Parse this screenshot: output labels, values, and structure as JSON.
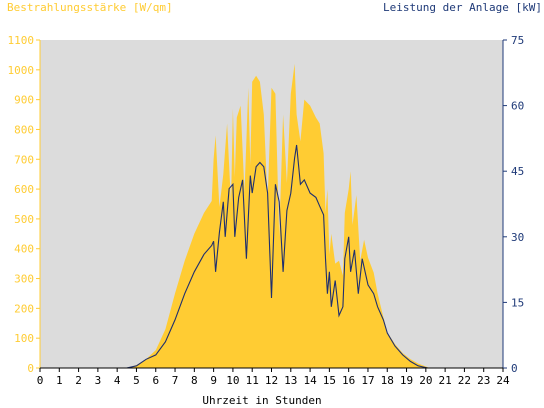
{
  "chart_data": {
    "type": "area",
    "left_axis_label": "Bestrahlungsstärke [W/qm]",
    "right_axis_label": "Leistung der Anlage [kW]",
    "xlabel": "Uhrzeit in Stunden",
    "xlim": [
      0,
      24
    ],
    "x_ticks": [
      "0",
      "1",
      "2",
      "3",
      "4",
      "5",
      "6",
      "7",
      "8",
      "9",
      "10",
      "11",
      "12",
      "13",
      "14",
      "15",
      "16",
      "17",
      "18",
      "19",
      "20",
      "21",
      "22",
      "23",
      "24"
    ],
    "y_left_lim": [
      0,
      1100
    ],
    "y_left_ticks": [
      "0",
      "100",
      "200",
      "300",
      "400",
      "500",
      "600",
      "700",
      "800",
      "900",
      "1000",
      "1100"
    ],
    "y_right_lim": [
      0,
      75
    ],
    "y_right_ticks": [
      "0",
      "15",
      "30",
      "45",
      "60",
      "75"
    ],
    "grid": false,
    "colors": {
      "irradiance": "#ffcc33",
      "power": "#1f2f6e",
      "plot_bg": "#dcdcdc",
      "left_axis": "#ffcc33",
      "right_axis": "#1f3a78",
      "x_axis": "#000000"
    },
    "series": [
      {
        "name": "Bestrahlungsstärke",
        "axis": "left",
        "x": [
          0,
          4.5,
          5,
          5.5,
          6,
          6.5,
          7,
          7.5,
          8,
          8.5,
          8.9,
          9.0,
          9.1,
          9.3,
          9.5,
          9.7,
          9.9,
          10.0,
          10.1,
          10.2,
          10.4,
          10.6,
          10.8,
          10.9,
          11.0,
          11.2,
          11.4,
          11.6,
          11.8,
          12.0,
          12.2,
          12.4,
          12.6,
          12.8,
          13.0,
          13.2,
          13.3,
          13.5,
          13.7,
          14.0,
          14.3,
          14.5,
          14.7,
          14.8,
          14.9,
          15.0,
          15.1,
          15.3,
          15.5,
          15.7,
          15.8,
          16.0,
          16.1,
          16.2,
          16.4,
          16.6,
          16.8,
          17.0,
          17.3,
          17.5,
          17.8,
          18.0,
          18.4,
          18.8,
          19.2,
          19.6,
          20.0,
          20.2,
          20.5,
          24
        ],
        "values": [
          0,
          0,
          10,
          30,
          60,
          130,
          250,
          360,
          450,
          520,
          560,
          700,
          780,
          540,
          650,
          820,
          550,
          870,
          640,
          840,
          880,
          590,
          940,
          680,
          960,
          980,
          960,
          850,
          560,
          940,
          920,
          440,
          850,
          620,
          920,
          1020,
          850,
          760,
          900,
          880,
          840,
          820,
          720,
          520,
          600,
          380,
          450,
          350,
          360,
          310,
          520,
          600,
          660,
          480,
          580,
          360,
          430,
          370,
          320,
          250,
          170,
          120,
          80,
          50,
          30,
          15,
          5,
          0,
          0,
          0
        ]
      },
      {
        "name": "Leistung der Anlage",
        "axis": "right",
        "x": [
          0,
          4.5,
          5,
          5.5,
          6,
          6.5,
          7,
          7.5,
          8,
          8.5,
          8.9,
          9.0,
          9.1,
          9.3,
          9.5,
          9.6,
          9.8,
          10.0,
          10.1,
          10.3,
          10.5,
          10.7,
          10.9,
          11.0,
          11.2,
          11.4,
          11.6,
          11.8,
          12.0,
          12.2,
          12.4,
          12.6,
          12.8,
          13.0,
          13.2,
          13.3,
          13.5,
          13.7,
          14.0,
          14.3,
          14.5,
          14.7,
          14.8,
          14.9,
          15.0,
          15.1,
          15.3,
          15.5,
          15.7,
          15.8,
          16.0,
          16.1,
          16.3,
          16.5,
          16.7,
          17.0,
          17.3,
          17.5,
          17.8,
          18.0,
          18.4,
          18.8,
          19.2,
          19.6,
          19.9,
          20.1,
          24
        ],
        "values": [
          0,
          0,
          0.5,
          2,
          3,
          6,
          11,
          17,
          22,
          26,
          28,
          29,
          22,
          31,
          38,
          30,
          41,
          42,
          30,
          39,
          43,
          25,
          44,
          40,
          46,
          47,
          46,
          40,
          16,
          42,
          38,
          22,
          36,
          40,
          48,
          51,
          42,
          43,
          40,
          39,
          37,
          35,
          25,
          17,
          22,
          14,
          20,
          12,
          14,
          25,
          30,
          22,
          27,
          17,
          25,
          19,
          17,
          14,
          11,
          8,
          5,
          3,
          1.5,
          0.5,
          0.2,
          0,
          0
        ]
      }
    ]
  }
}
